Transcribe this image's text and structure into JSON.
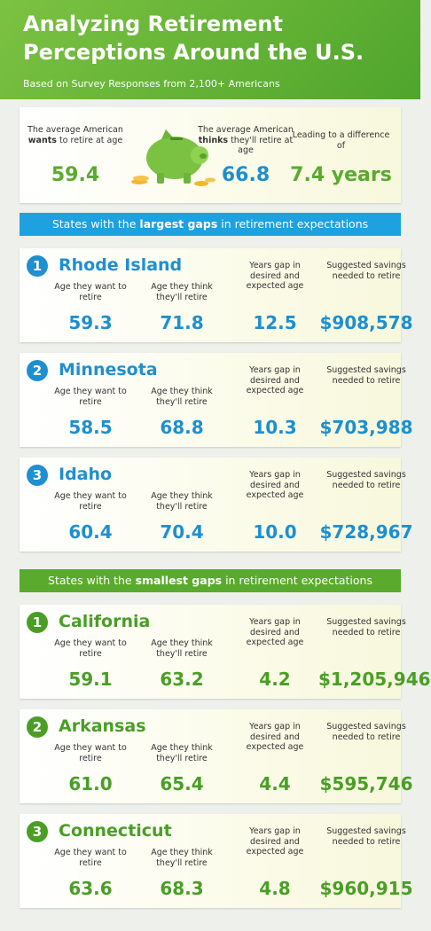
{
  "header": {
    "title_lines": [
      "Analyzing Retirement",
      "Perceptions Around the U.S."
    ],
    "subtitle": "Based on Survey Responses from 2,100+ Americans"
  },
  "summary": {
    "items": [
      {
        "label_parts": [
          "The average American ",
          "wants",
          " to retire at age"
        ],
        "value": "59.4"
      },
      {
        "label_parts": [
          "The average American ",
          "thinks",
          " they'll retire at age"
        ],
        "value": "66.8"
      },
      {
        "label_parts": [
          "Leading to a difference of"
        ],
        "value": "7.4 years"
      }
    ]
  },
  "sections": [
    {
      "banner_parts": [
        "States with the ",
        "largest gaps",
        " in retirement expectations"
      ],
      "column_labels": [
        "Age they want to retire",
        "Age they think they'll retire",
        "Years gap in desired and expected age",
        "Suggested savings needed to retire"
      ],
      "states": [
        {
          "rank": "1",
          "name": "Rhode Island",
          "values": [
            "59.3",
            "71.8",
            "12.5",
            "$908,578"
          ]
        },
        {
          "rank": "2",
          "name": "Minnesota",
          "values": [
            "58.5",
            "68.8",
            "10.3",
            "$703,988"
          ]
        },
        {
          "rank": "3",
          "name": "Idaho",
          "values": [
            "60.4",
            "70.4",
            "10.0",
            "$728,967"
          ]
        }
      ]
    },
    {
      "banner_parts": [
        "States with the ",
        "smallest gaps",
        " in retirement expectations"
      ],
      "column_labels": [
        "Age they want to retire",
        "Age they think they'll retire",
        "Years gap in desired and expected age",
        "Suggested savings needed to retire"
      ],
      "states": [
        {
          "rank": "1",
          "name": "California",
          "values": [
            "59.1",
            "63.2",
            "4.2",
            "$1,205,946"
          ]
        },
        {
          "rank": "2",
          "name": "Arkansas",
          "values": [
            "61.0",
            "65.4",
            "4.4",
            "$595,746"
          ]
        },
        {
          "rank": "3",
          "name": "Connecticut",
          "values": [
            "63.6",
            "68.3",
            "4.8",
            "$960,915"
          ]
        }
      ]
    }
  ]
}
